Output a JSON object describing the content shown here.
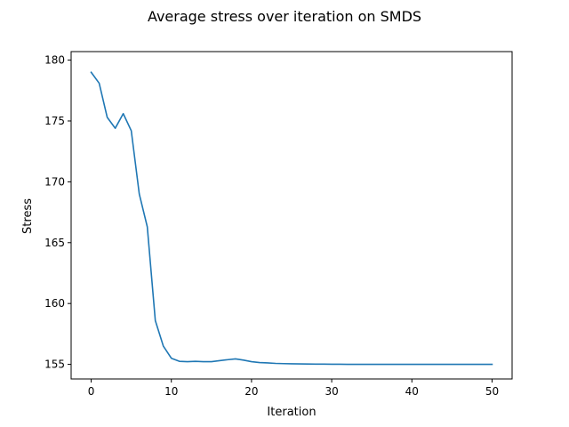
{
  "chart_data": {
    "type": "line",
    "title": "Average stress over iteration on SMDS",
    "xlabel": "Iteration",
    "ylabel": "Stress",
    "xlim": [
      -2.5,
      52.5
    ],
    "ylim": [
      153.8,
      180.7
    ],
    "xticks": [
      0,
      10,
      20,
      30,
      40,
      50
    ],
    "yticks": [
      155,
      160,
      165,
      170,
      175,
      180
    ],
    "grid": false,
    "legend": "none",
    "colors": {
      "line": "#1f77b4",
      "axes": "#000000",
      "background": "#ffffff"
    },
    "series": [
      {
        "x": [
          0,
          1,
          2,
          3,
          4,
          5,
          6,
          7,
          8,
          9,
          10,
          11,
          12,
          13,
          14,
          15,
          16,
          17,
          18,
          19,
          20,
          21,
          22,
          23,
          24,
          25,
          26,
          27,
          28,
          29,
          30,
          31,
          32,
          33,
          34,
          35,
          36,
          37,
          38,
          39,
          40,
          41,
          42,
          43,
          44,
          45,
          46,
          47,
          48,
          49,
          50
        ],
        "values": [
          179.0,
          178.1,
          175.3,
          174.4,
          175.6,
          174.2,
          169.0,
          166.3,
          158.6,
          156.5,
          155.5,
          155.25,
          155.22,
          155.25,
          155.22,
          155.22,
          155.3,
          155.38,
          155.45,
          155.35,
          155.22,
          155.15,
          155.12,
          155.08,
          155.06,
          155.05,
          155.04,
          155.03,
          155.02,
          155.02,
          155.01,
          155.01,
          155.0,
          155.0,
          155.0,
          155.0,
          155.0,
          155.0,
          155.0,
          155.0,
          155.0,
          155.0,
          155.0,
          155.0,
          155.0,
          155.0,
          155.0,
          155.0,
          155.0,
          155.0,
          155.0
        ]
      }
    ]
  }
}
